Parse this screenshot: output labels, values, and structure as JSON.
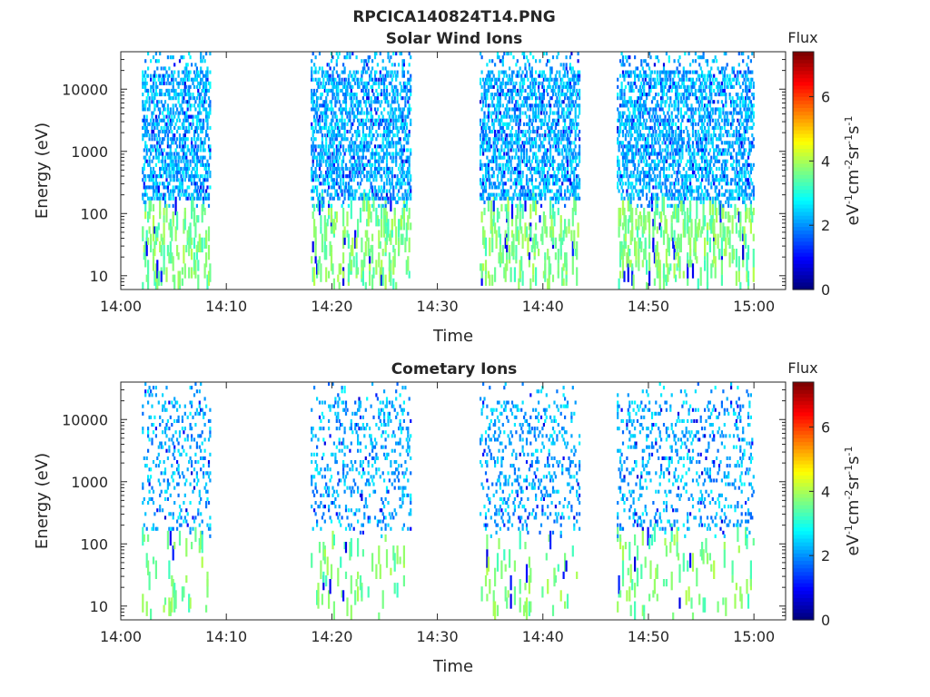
{
  "figure": {
    "title": "RPCICA140824T14.PNG"
  },
  "colormap": [
    "#00007f",
    "#0000ff",
    "#007fff",
    "#00ffff",
    "#7fff7f",
    "#ffff00",
    "#ff7f00",
    "#ff0000",
    "#7f0000"
  ],
  "chart_data": [
    {
      "type": "heatmap",
      "title": "Solar Wind Ions",
      "xlabel": "Time",
      "ylabel": "Energy (eV)",
      "yscale": "log",
      "ylim": [
        6,
        40000
      ],
      "xlim": [
        "14:00",
        "15:03"
      ],
      "xticks": [
        "14:00",
        "14:10",
        "14:20",
        "14:30",
        "14:40",
        "14:50",
        "15:00"
      ],
      "yticks": [
        "10",
        "100",
        "1000",
        "10000"
      ],
      "colorbar": {
        "label": "Flux",
        "units": "eV-1 cm-2 sr-1 s-1",
        "range": [
          0,
          7.4
        ],
        "ticks": [
          "0",
          "2",
          "4",
          "6"
        ]
      },
      "bursts": [
        {
          "start": "14:02",
          "end": "14:08.5"
        },
        {
          "start": "14:18",
          "end": "14:27.5"
        },
        {
          "start": "14:34",
          "end": "14:43.5"
        },
        {
          "start": "14:47",
          "end": "15:00"
        }
      ]
    },
    {
      "type": "heatmap",
      "title": "Cometary Ions",
      "xlabel": "Time",
      "ylabel": "Energy (eV)",
      "yscale": "log",
      "ylim": [
        6,
        40000
      ],
      "xlim": [
        "14:00",
        "15:03"
      ],
      "xticks": [
        "14:00",
        "14:10",
        "14:20",
        "14:30",
        "14:40",
        "14:50",
        "15:00"
      ],
      "yticks": [
        "10",
        "100",
        "1000",
        "10000"
      ],
      "colorbar": {
        "label": "Flux",
        "units": "eV-1 cm-2 sr-1 s-1",
        "range": [
          0,
          7.4
        ],
        "ticks": [
          "0",
          "2",
          "4",
          "6"
        ]
      },
      "bursts": [
        {
          "start": "14:02",
          "end": "14:08.5"
        },
        {
          "start": "14:18",
          "end": "14:27.5"
        },
        {
          "start": "14:34",
          "end": "14:43.5"
        },
        {
          "start": "14:47",
          "end": "15:00"
        }
      ]
    }
  ]
}
